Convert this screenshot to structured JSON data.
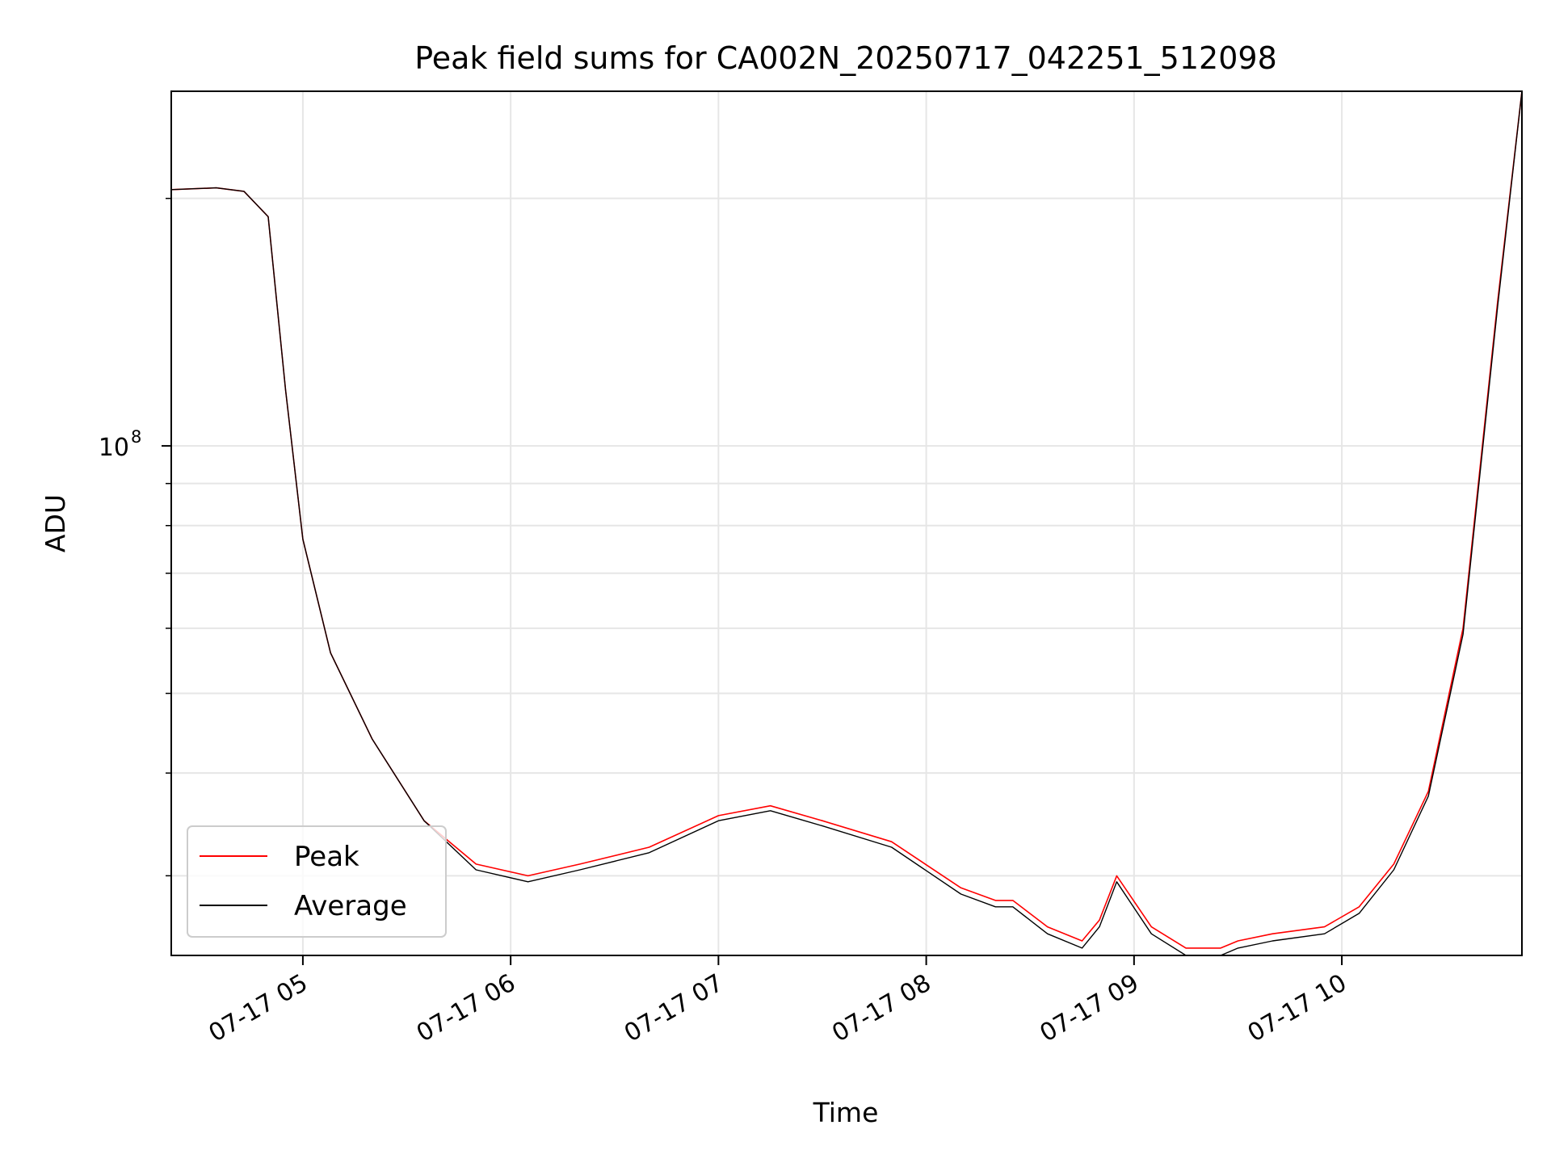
{
  "chart_data": {
    "type": "line",
    "title": "Peak field sums for CA002N_20250717_042251_512098",
    "xlabel": "Time",
    "ylabel": "ADU",
    "yscale": "log",
    "xlim": [
      "2025-07-17 04:22",
      "2025-07-17 10:52"
    ],
    "ylim": [
      24000000,
      270000000
    ],
    "grid": true,
    "legend": "lower-left",
    "x_ticks": [
      {
        "time": "2025-07-17 05:00",
        "label": "07-17 05"
      },
      {
        "time": "2025-07-17 06:00",
        "label": "07-17 06"
      },
      {
        "time": "2025-07-17 07:00",
        "label": "07-17 07"
      },
      {
        "time": "2025-07-17 08:00",
        "label": "07-17 08"
      },
      {
        "time": "2025-07-17 09:00",
        "label": "07-17 09"
      },
      {
        "time": "2025-07-17 10:00",
        "label": "07-17 10"
      }
    ],
    "y_ticks": [
      {
        "value": 100000000,
        "label_base": "10",
        "label_exp": "8"
      }
    ],
    "series": [
      {
        "name": "Peak",
        "color": "#ff0000",
        "x": [
          "2025-07-17 04:22",
          "2025-07-17 04:35",
          "2025-07-17 04:43",
          "2025-07-17 04:50",
          "2025-07-17 04:55",
          "2025-07-17 05:00",
          "2025-07-17 05:08",
          "2025-07-17 05:20",
          "2025-07-17 05:35",
          "2025-07-17 05:50",
          "2025-07-17 06:05",
          "2025-07-17 06:20",
          "2025-07-17 06:40",
          "2025-07-17 07:00",
          "2025-07-17 07:15",
          "2025-07-17 07:30",
          "2025-07-17 07:50",
          "2025-07-17 08:10",
          "2025-07-17 08:20",
          "2025-07-17 08:25",
          "2025-07-17 08:35",
          "2025-07-17 08:45",
          "2025-07-17 08:50",
          "2025-07-17 08:55",
          "2025-07-17 09:05",
          "2025-07-17 09:15",
          "2025-07-17 09:25",
          "2025-07-17 09:30",
          "2025-07-17 09:40",
          "2025-07-17 09:55",
          "2025-07-17 10:05",
          "2025-07-17 10:15",
          "2025-07-17 10:25",
          "2025-07-17 10:35",
          "2025-07-17 10:45",
          "2025-07-17 10:52"
        ],
        "y": [
          205000000,
          206000000,
          204000000,
          190000000,
          117000000,
          77000000,
          56000000,
          44000000,
          35000000,
          31000000,
          30000000,
          31000000,
          32500000,
          35500000,
          36500000,
          35000000,
          33000000,
          29000000,
          28000000,
          28000000,
          26000000,
          25000000,
          26500000,
          30000000,
          26000000,
          24500000,
          24500000,
          25000000,
          25500000,
          26000000,
          27500000,
          31000000,
          38000000,
          60000000,
          150000000,
          270000000
        ]
      },
      {
        "name": "Average",
        "color": "#000000",
        "x": [
          "2025-07-17 04:22",
          "2025-07-17 04:35",
          "2025-07-17 04:43",
          "2025-07-17 04:50",
          "2025-07-17 04:55",
          "2025-07-17 05:00",
          "2025-07-17 05:08",
          "2025-07-17 05:20",
          "2025-07-17 05:35",
          "2025-07-17 05:50",
          "2025-07-17 06:05",
          "2025-07-17 06:20",
          "2025-07-17 06:40",
          "2025-07-17 07:00",
          "2025-07-17 07:15",
          "2025-07-17 07:30",
          "2025-07-17 07:50",
          "2025-07-17 08:10",
          "2025-07-17 08:20",
          "2025-07-17 08:25",
          "2025-07-17 08:35",
          "2025-07-17 08:45",
          "2025-07-17 08:50",
          "2025-07-17 08:55",
          "2025-07-17 09:05",
          "2025-07-17 09:15",
          "2025-07-17 09:25",
          "2025-07-17 09:30",
          "2025-07-17 09:40",
          "2025-07-17 09:55",
          "2025-07-17 10:05",
          "2025-07-17 10:15",
          "2025-07-17 10:25",
          "2025-07-17 10:35",
          "2025-07-17 10:45",
          "2025-07-17 10:52"
        ],
        "y": [
          205000000,
          206000000,
          204000000,
          190000000,
          117000000,
          77000000,
          56000000,
          44000000,
          35000000,
          30500000,
          29500000,
          30500000,
          32000000,
          35000000,
          36000000,
          34500000,
          32500000,
          28500000,
          27500000,
          27500000,
          25500000,
          24500000,
          26000000,
          29500000,
          25500000,
          24000000,
          24000000,
          24500000,
          25000000,
          25500000,
          27000000,
          30500000,
          37500000,
          59000000,
          148000000,
          270000000
        ]
      }
    ]
  }
}
